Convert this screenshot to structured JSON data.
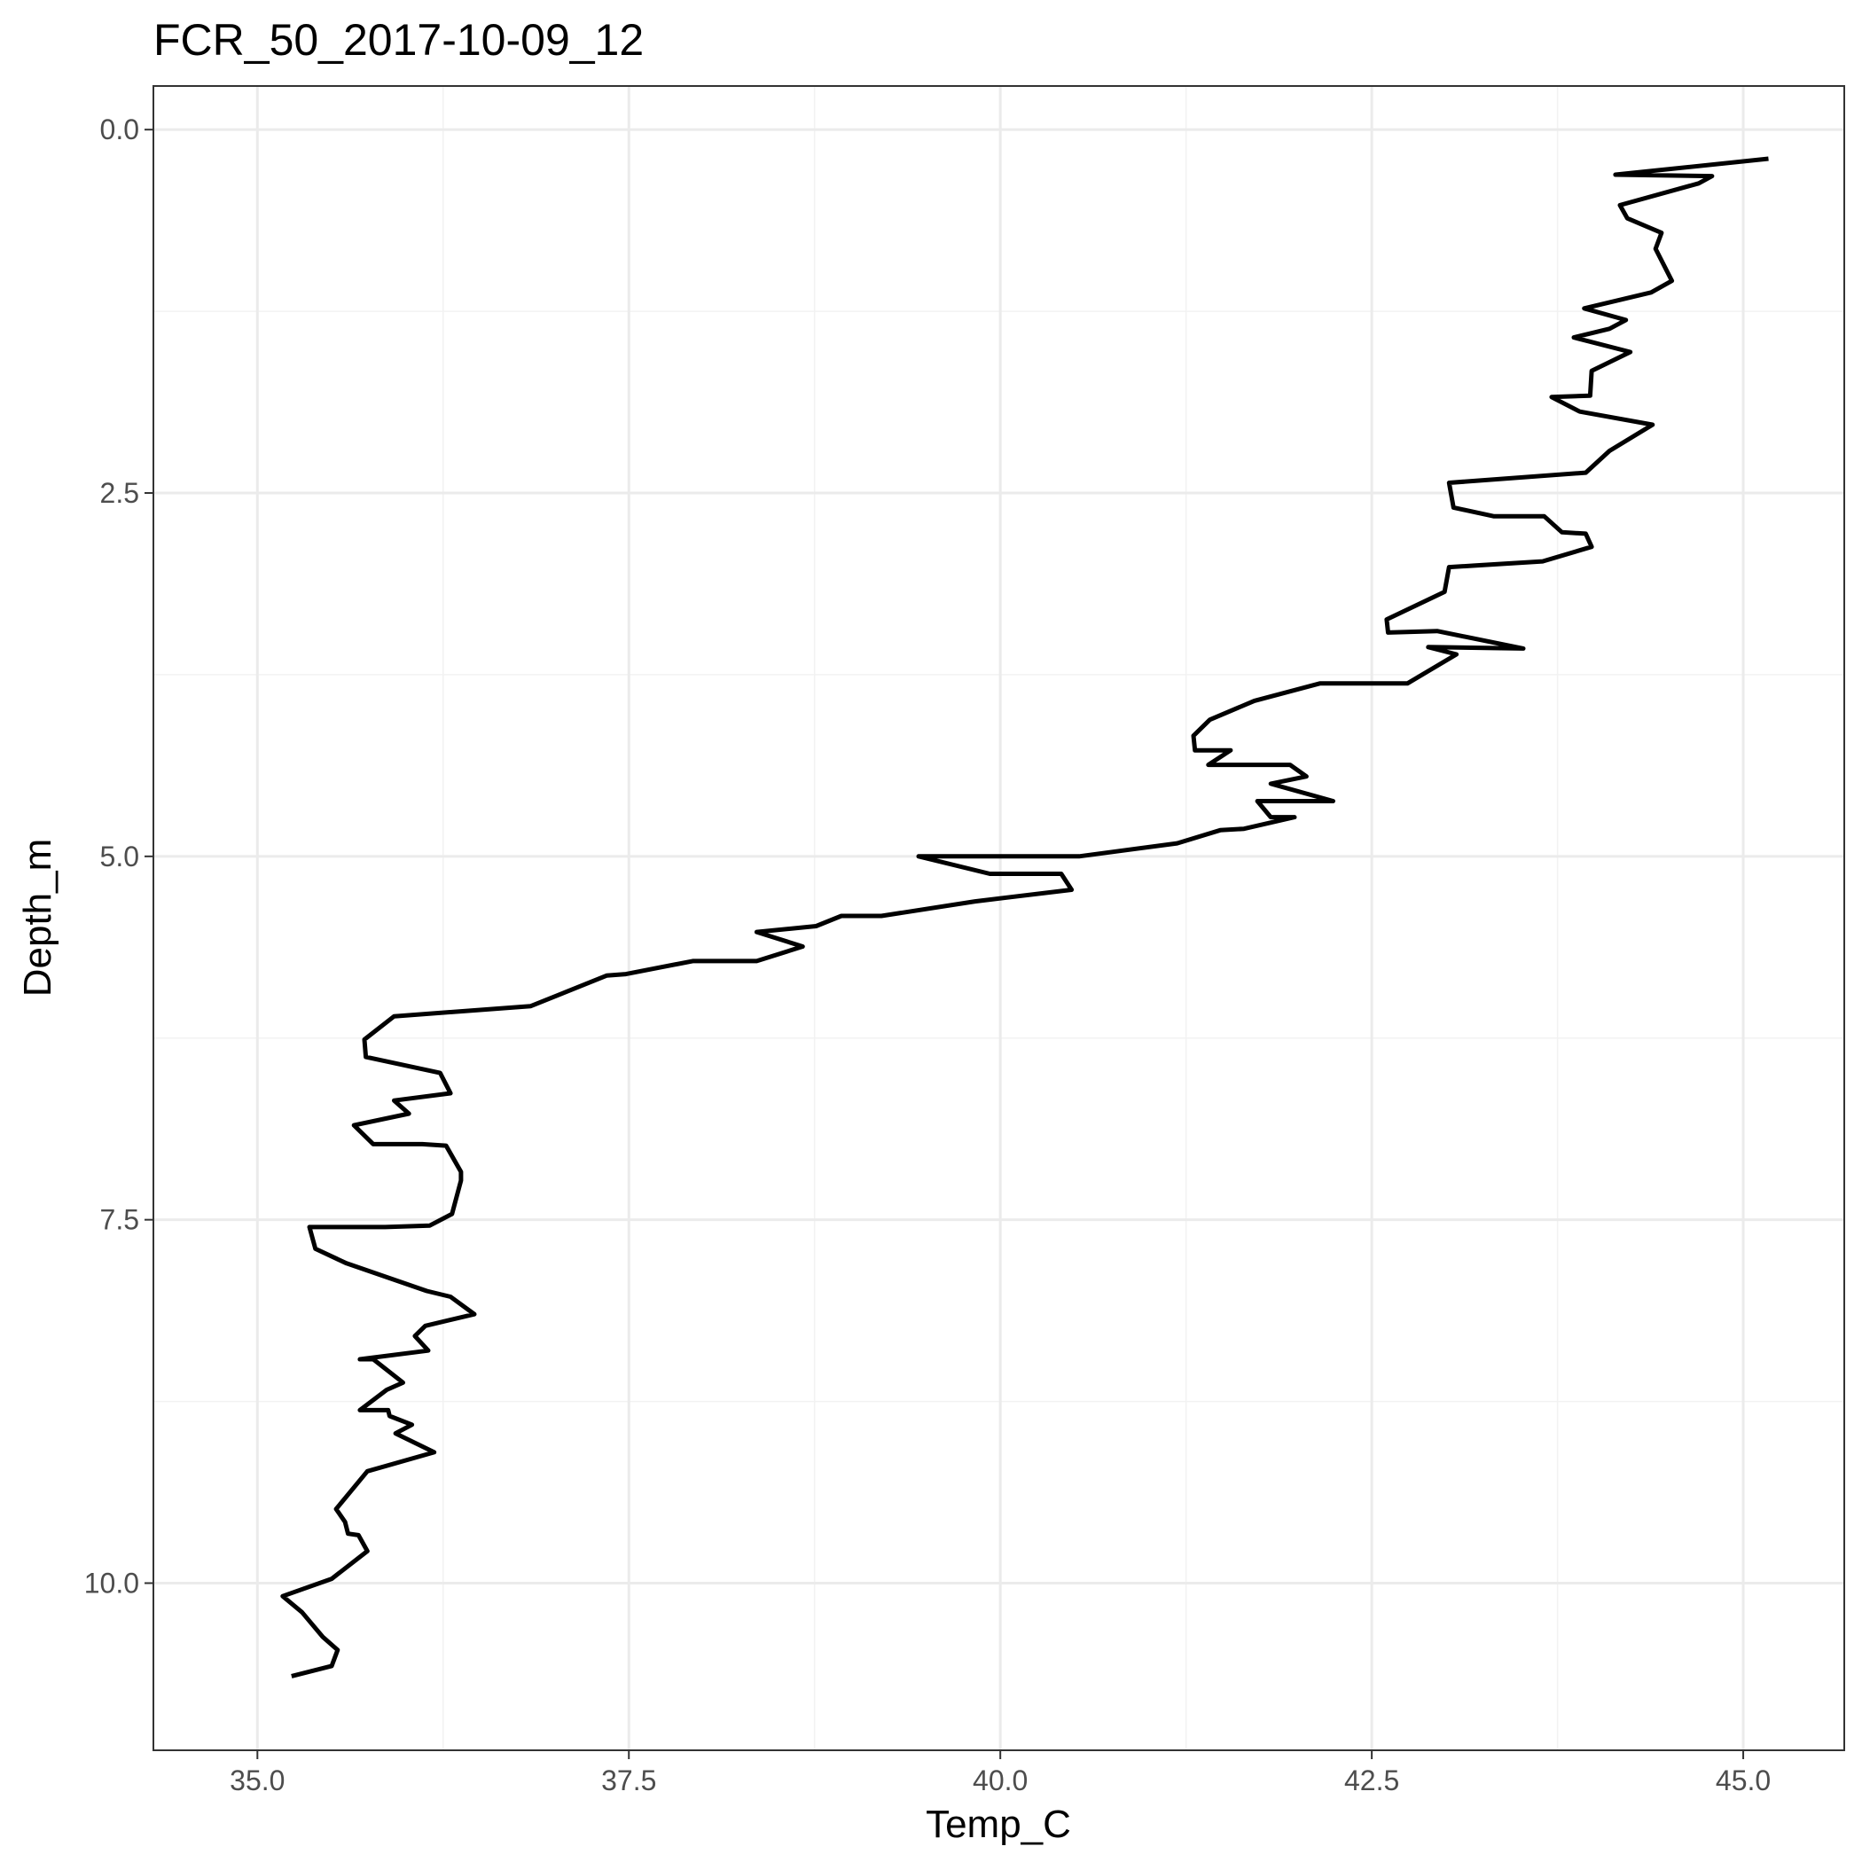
{
  "chart_data": {
    "type": "line",
    "title": "FCR_50_2017-10-09_12",
    "xlabel": "Temp_C",
    "ylabel": "Depth_m",
    "xlim": [
      34.3,
      45.68
    ],
    "ylim": [
      11.15,
      -0.3
    ],
    "y_reversed": true,
    "grid": true,
    "legend": "none",
    "line_color": "#000000",
    "x_ticks": [
      35.0,
      37.5,
      40.0,
      42.5,
      45.0
    ],
    "x_tick_labels": [
      "35.0",
      "37.5",
      "40.0",
      "42.5",
      "45.0"
    ],
    "y_ticks": [
      0.0,
      2.5,
      5.0,
      7.5,
      10.0
    ],
    "y_tick_labels": [
      "0.0",
      "2.5",
      "5.0",
      "7.5",
      "10.0"
    ],
    "series": [
      {
        "x": [
          45.17,
          44.14,
          44.79,
          44.7,
          44.17,
          44.22,
          44.45,
          44.41,
          44.52,
          44.38,
          43.93,
          44.21,
          44.1,
          43.86,
          44.24,
          43.98,
          43.97,
          43.71,
          43.9,
          44.39,
          44.1,
          43.94,
          43.02,
          43.05,
          43.32,
          43.66,
          43.78,
          43.94,
          43.98,
          43.65,
          43.02,
          42.99,
          42.6,
          42.61,
          42.94,
          43.52,
          42.88,
          43.07,
          42.74,
          42.15,
          41.71,
          41.41,
          41.3,
          41.31,
          41.55,
          41.4,
          41.95,
          42.06,
          41.82,
          42.24,
          41.73,
          41.82,
          41.98,
          41.64,
          41.48,
          41.19,
          40.53,
          39.45,
          39.93,
          40.41,
          40.48,
          39.83,
          39.2,
          38.93,
          38.76,
          38.36,
          38.67,
          38.36,
          37.93,
          37.48,
          37.35,
          36.84,
          35.92,
          35.72,
          35.73,
          36.23,
          36.3,
          35.92,
          36.02,
          35.65,
          35.78,
          36.11,
          36.27,
          36.37,
          36.37,
          36.31,
          36.16,
          35.86,
          35.35,
          35.39,
          35.6,
          36.14,
          36.3,
          36.46,
          36.13,
          36.06,
          36.15,
          35.69,
          35.78,
          35.98,
          35.87,
          35.69,
          35.88,
          35.89,
          36.04,
          35.93,
          36.19,
          35.74,
          35.53,
          35.59,
          35.61,
          35.68,
          35.74,
          35.5,
          35.17,
          35.3,
          35.44,
          35.54,
          35.5,
          35.23
        ],
        "y": [
          0.2,
          0.31,
          0.32,
          0.37,
          0.52,
          0.61,
          0.71,
          0.82,
          1.04,
          1.12,
          1.23,
          1.31,
          1.37,
          1.43,
          1.53,
          1.66,
          1.83,
          1.84,
          1.94,
          2.03,
          2.21,
          2.36,
          2.43,
          2.6,
          2.66,
          2.66,
          2.77,
          2.78,
          2.87,
          2.97,
          3.01,
          3.18,
          3.37,
          3.46,
          3.45,
          3.57,
          3.56,
          3.61,
          3.81,
          3.81,
          3.93,
          4.06,
          4.17,
          4.27,
          4.27,
          4.37,
          4.37,
          4.45,
          4.5,
          4.62,
          4.62,
          4.73,
          4.73,
          4.81,
          4.82,
          4.91,
          5.0,
          5.0,
          5.12,
          5.12,
          5.23,
          5.31,
          5.41,
          5.41,
          5.48,
          5.52,
          5.62,
          5.72,
          5.72,
          5.81,
          5.82,
          6.03,
          6.1,
          6.26,
          6.38,
          6.49,
          6.63,
          6.68,
          6.77,
          6.85,
          6.98,
          6.98,
          6.99,
          7.17,
          7.23,
          7.46,
          7.54,
          7.55,
          7.55,
          7.7,
          7.8,
          7.99,
          8.03,
          8.15,
          8.23,
          8.3,
          8.4,
          8.46,
          8.46,
          8.62,
          8.67,
          8.81,
          8.81,
          8.85,
          8.91,
          8.97,
          9.1,
          9.23,
          9.49,
          9.58,
          9.66,
          9.67,
          9.78,
          9.97,
          10.09,
          10.2,
          10.37,
          10.46,
          10.57,
          10.64
        ]
      }
    ]
  }
}
